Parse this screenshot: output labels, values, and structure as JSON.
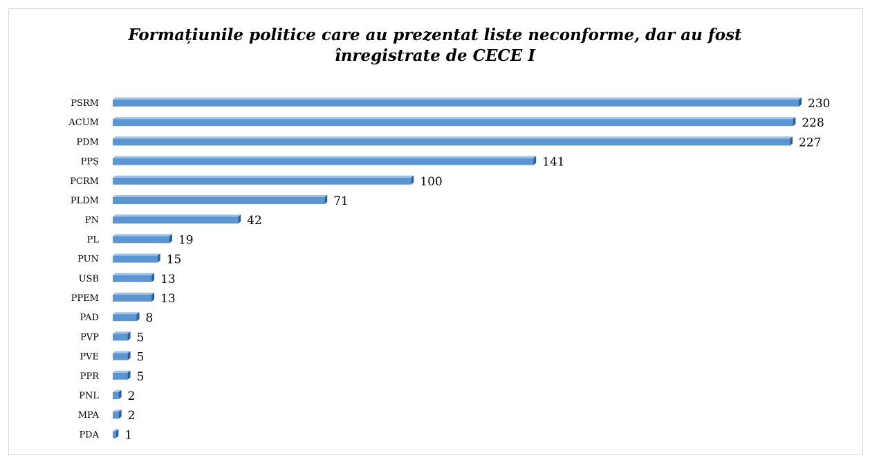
{
  "chart_data": {
    "type": "bar",
    "orientation": "horizontal",
    "title_lines": [
      "Formațiunile politice care au prezentat liste neconforme, dar au fost",
      "înregistrate de CECE I"
    ],
    "categories": [
      "PSRM",
      "ACUM",
      "PDM",
      "PPȘ",
      "PCRM",
      "PLDM",
      "PN",
      "PL",
      "PUN",
      "USB",
      "PPEM",
      "PAD",
      "PVP",
      "PVE",
      "PPR",
      "PNL",
      "MPA",
      "PDA"
    ],
    "values": [
      230,
      228,
      227,
      141,
      100,
      71,
      42,
      19,
      15,
      13,
      13,
      8,
      5,
      5,
      5,
      2,
      2,
      1
    ],
    "value_labels": [
      "230",
      "228",
      "227",
      "141",
      "100",
      "71",
      "42",
      "19",
      "15",
      "13",
      "13",
      "8",
      "5",
      "5",
      "5",
      "2",
      "2",
      "1"
    ],
    "xlim": [
      0,
      230
    ],
    "grid": false,
    "legend": "none",
    "colors": {
      "bar_face": "#5b96d3",
      "bar_top": "#9cc2ea",
      "bar_side": "#2f5f93"
    }
  }
}
